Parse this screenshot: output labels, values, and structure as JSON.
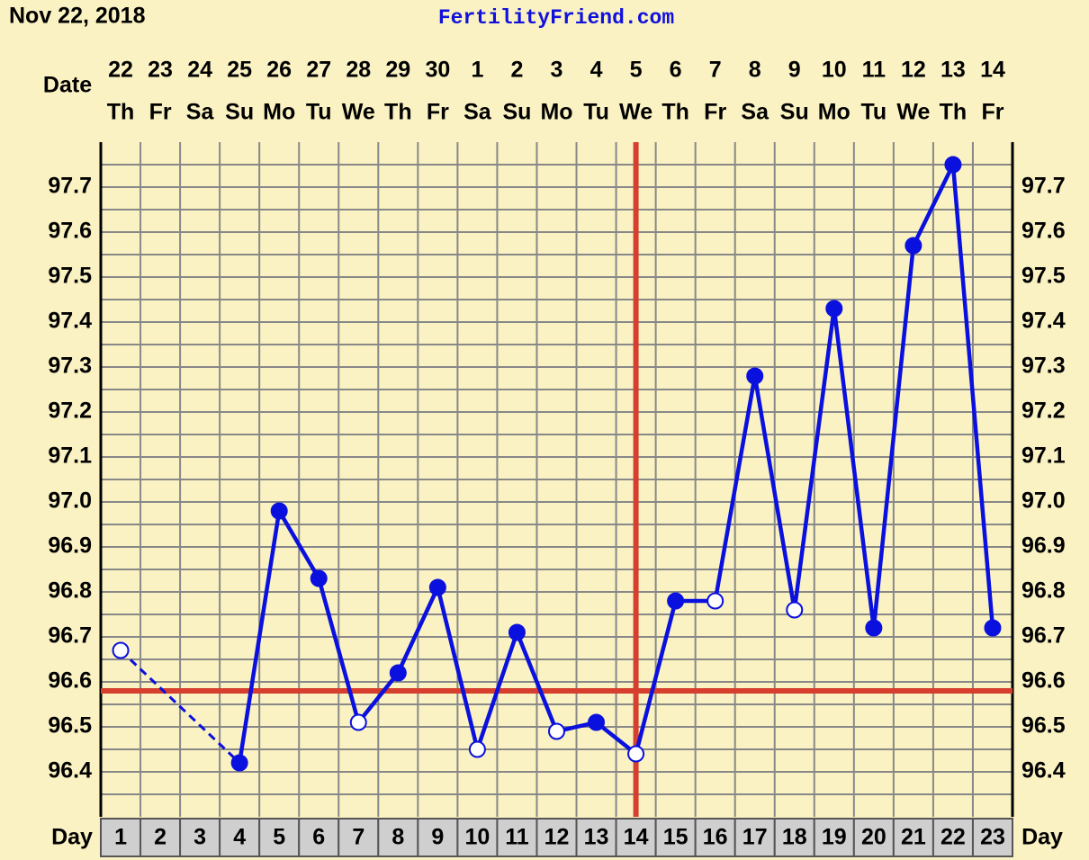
{
  "chart_data": {
    "type": "line",
    "date_text": "Nov 22, 2018",
    "title": "FertilityFriend.com",
    "date_label": "Date",
    "day_label": "Day",
    "categories": [
      "1",
      "2",
      "3",
      "4",
      "5",
      "6",
      "7",
      "8",
      "9",
      "10",
      "11",
      "12",
      "13",
      "14",
      "15",
      "16",
      "17",
      "18",
      "19",
      "20",
      "21",
      "22",
      "23"
    ],
    "dates": [
      "22",
      "23",
      "24",
      "25",
      "26",
      "27",
      "28",
      "29",
      "30",
      "1",
      "2",
      "3",
      "4",
      "5",
      "6",
      "7",
      "8",
      "9",
      "10",
      "11",
      "12",
      "13",
      "14"
    ],
    "weekdays": [
      "Th",
      "Fr",
      "Sa",
      "Su",
      "Mo",
      "Tu",
      "We",
      "Th",
      "Fr",
      "Sa",
      "Su",
      "Mo",
      "Tu",
      "We",
      "Th",
      "Fr",
      "Sa",
      "Su",
      "Mo",
      "Tu",
      "We",
      "Th",
      "Fr"
    ],
    "series": [
      {
        "color": "#0a10dd",
        "values": [
          96.67,
          null,
          null,
          96.42,
          96.98,
          96.83,
          96.51,
          96.62,
          96.81,
          96.45,
          96.71,
          96.49,
          96.51,
          96.44,
          96.78,
          96.78,
          97.28,
          96.76,
          97.43,
          96.72,
          97.57,
          97.75,
          96.72
        ],
        "marker_style": [
          "open",
          null,
          null,
          "filled",
          "filled",
          "filled",
          "open",
          "filled",
          "filled",
          "open",
          "filled",
          "open",
          "filled",
          "open",
          "filled",
          "open",
          "filled",
          "open",
          "filled",
          "filled",
          "filled",
          "filled",
          "filled"
        ],
        "gap_line": "dashed"
      }
    ],
    "coverline": 96.58,
    "ovulation_day": 14,
    "line_color": "#d63f2e",
    "ylim": [
      96.3,
      97.8
    ],
    "yticks": [
      96.4,
      96.5,
      96.6,
      96.7,
      96.8,
      96.9,
      {
        "value": 97,
        "label": "97.0"
      },
      97.1,
      97.2,
      97.3,
      97.4,
      97.5,
      97.6,
      97.7
    ],
    "grid": true
  }
}
